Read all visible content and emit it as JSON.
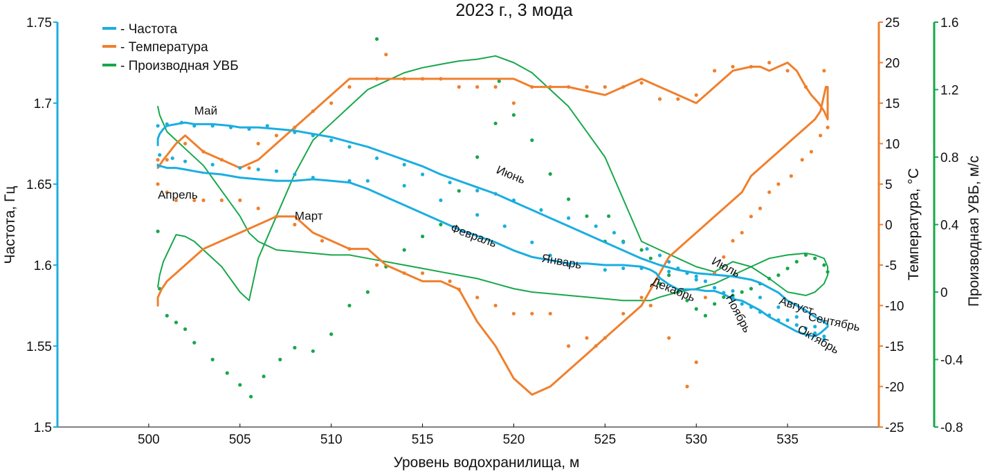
{
  "chart_data": {
    "type": "line",
    "title": "2023 г., 3 мода",
    "xlabel": "Уровень водохранилища, м",
    "xlim": [
      495,
      540
    ],
    "xticks": [
      500,
      505,
      510,
      515,
      520,
      525,
      530,
      535
    ],
    "axes": {
      "freq": {
        "label": "Частота, Гц",
        "lim": [
          1.5,
          1.75
        ],
        "ticks": [
          1.5,
          1.55,
          1.6,
          1.65,
          1.7,
          1.75
        ],
        "tick_labels": [
          "1.5",
          "1.55",
          "1.6",
          "1.65",
          "1.7",
          "1.75"
        ],
        "color": "#1aaee0"
      },
      "temp": {
        "label": "Температура, °С",
        "lim": [
          -25,
          25
        ],
        "ticks": [
          -25,
          -20,
          -15,
          -10,
          -5,
          0,
          5,
          10,
          15,
          20,
          25
        ],
        "tick_labels": [
          "-25",
          "-20",
          "-15",
          "-10",
          "-5",
          "0",
          "5",
          "10",
          "15",
          "20",
          "25"
        ],
        "color": "#f07f2c"
      },
      "deriv": {
        "label": "Производная УВБ, м/с",
        "lim": [
          -0.8,
          1.6
        ],
        "ticks": [
          -0.8,
          -0.4,
          0,
          0.4,
          0.8,
          1.2,
          1.6
        ],
        "tick_labels": [
          "-0.8",
          "-0.4",
          "0",
          "0.4",
          "0.8",
          "1.2",
          "1.6"
        ],
        "color": "#17a74a"
      }
    },
    "legend": {
      "placement": "top-left",
      "items": [
        "- Частота",
        "- Температура",
        "- Производная УВБ"
      ]
    },
    "series": [
      {
        "name": "Частота",
        "axis": "freq",
        "color": "#1aaee0",
        "line_x": [
          500.5,
          500.5,
          500.6,
          500.8,
          501,
          501.5,
          502,
          502.5,
          503.5,
          504.5,
          505,
          506,
          507,
          508,
          509,
          510,
          511,
          512,
          513,
          514,
          515,
          516,
          517,
          518,
          519,
          520,
          521,
          522,
          523,
          524,
          525,
          525,
          526,
          527,
          528,
          529,
          530,
          531,
          532,
          533,
          533.5,
          534,
          534.5,
          535,
          535.5,
          536,
          536.5,
          537,
          537.2,
          537.2,
          537.1,
          537,
          536.8,
          536.5,
          536,
          535.5,
          535,
          534.5,
          534,
          533.5,
          533,
          532.5,
          532,
          531.5,
          531,
          530.5,
          530,
          529.5,
          529,
          528.5,
          528,
          527.8,
          527.5,
          527,
          526,
          525,
          524,
          523,
          522,
          521,
          520,
          519,
          518,
          517,
          516,
          515,
          514,
          513,
          512,
          511,
          510,
          509,
          508,
          507,
          506,
          505,
          504,
          503,
          502.5,
          502,
          501.5,
          501,
          500.7,
          500.5,
          500.5
        ],
        "line_y": [
          1.674,
          1.678,
          1.681,
          1.684,
          1.686,
          1.687,
          1.688,
          1.687,
          1.687,
          1.686,
          1.685,
          1.685,
          1.684,
          1.683,
          1.681,
          1.679,
          1.676,
          1.673,
          1.669,
          1.665,
          1.661,
          1.656,
          1.652,
          1.648,
          1.644,
          1.639,
          1.634,
          1.629,
          1.624,
          1.619,
          1.614,
          1.614,
          1.609,
          1.604,
          1.6,
          1.597,
          1.595,
          1.594,
          1.593,
          1.591,
          1.589,
          1.586,
          1.583,
          1.578,
          1.575,
          1.572,
          1.568,
          1.565,
          1.563,
          1.562,
          1.561,
          1.56,
          1.558,
          1.556,
          1.557,
          1.559,
          1.562,
          1.565,
          1.568,
          1.572,
          1.575,
          1.578,
          1.579,
          1.582,
          1.584,
          1.584,
          1.585,
          1.585,
          1.585,
          1.588,
          1.592,
          1.595,
          1.597,
          1.599,
          1.6,
          1.6,
          1.601,
          1.601,
          1.603,
          1.605,
          1.609,
          1.614,
          1.618,
          1.622,
          1.627,
          1.632,
          1.637,
          1.642,
          1.647,
          1.651,
          1.652,
          1.653,
          1.652,
          1.652,
          1.653,
          1.654,
          1.656,
          1.657,
          1.658,
          1.659,
          1.66,
          1.66,
          1.661,
          1.661,
          1.662,
          1.66,
          1.661,
          1.664,
          1.668
        ],
        "scatter_x": [
          500.5,
          501,
          501.8,
          502.5,
          503.5,
          504.5,
          505.5,
          506.5,
          508,
          509,
          510,
          511,
          512.5,
          514,
          515,
          516.5,
          518,
          519,
          520,
          521.5,
          523,
          524.5,
          525.5,
          526,
          527.3,
          528,
          528.5,
          529,
          529.5,
          530,
          530.5,
          531,
          531.5,
          532,
          532.5,
          533,
          533.5,
          534,
          534.5,
          535,
          535.5,
          536,
          536.5,
          537,
          500.6,
          501.3,
          502,
          503.5,
          505,
          506,
          507,
          508,
          509,
          511,
          512,
          514,
          516,
          518,
          519.5,
          521,
          522,
          523,
          525,
          526,
          527,
          528.5,
          530,
          531,
          532,
          533.5,
          534.5,
          535.5,
          536.5,
          537
        ],
        "scatter_y": [
          1.686,
          1.687,
          1.688,
          1.686,
          1.686,
          1.685,
          1.684,
          1.686,
          1.682,
          1.68,
          1.677,
          1.673,
          1.666,
          1.662,
          1.656,
          1.651,
          1.646,
          1.644,
          1.64,
          1.634,
          1.629,
          1.624,
          1.62,
          1.614,
          1.61,
          1.606,
          1.602,
          1.598,
          1.595,
          1.593,
          1.59,
          1.586,
          1.583,
          1.58,
          1.576,
          1.574,
          1.571,
          1.569,
          1.566,
          1.566,
          1.563,
          1.561,
          1.558,
          1.556,
          1.668,
          1.666,
          1.664,
          1.662,
          1.66,
          1.659,
          1.658,
          1.656,
          1.654,
          1.652,
          1.652,
          1.649,
          1.64,
          1.631,
          1.624,
          1.614,
          1.606,
          1.6,
          1.597,
          1.598,
          1.598,
          1.596,
          1.591,
          1.586,
          1.584,
          1.58,
          1.574,
          1.568,
          1.562,
          1.554
        ]
      },
      {
        "name": "Температура",
        "axis": "temp",
        "color": "#f07f2c",
        "line_x": [
          500.5,
          500.8,
          501.5,
          502,
          502.5,
          503,
          504,
          505,
          506,
          507,
          508,
          509,
          510,
          511,
          512,
          513,
          514,
          515,
          516,
          517,
          518,
          519,
          520,
          521,
          522,
          523,
          524,
          525,
          525,
          526,
          527,
          528,
          529,
          530,
          531,
          532,
          533,
          533.5,
          534,
          534.5,
          535,
          535.5,
          536,
          536.3,
          536.7,
          537,
          537.2,
          537.2,
          537.1,
          537,
          536.8,
          536.5,
          536,
          535.5,
          535,
          534.5,
          534,
          533.5,
          533,
          532.5,
          532,
          531.5,
          531,
          530.5,
          530,
          529.5,
          529,
          528.5,
          528,
          527.5,
          527,
          526,
          525,
          524,
          523,
          522,
          521,
          520,
          519,
          518,
          517.5,
          517,
          516,
          515,
          514,
          513,
          512,
          511,
          510,
          509,
          508.5,
          508,
          507,
          506,
          505,
          504,
          503,
          502.5,
          502,
          501.5,
          501,
          500.7,
          500.5,
          500.5
        ],
        "line_y": [
          7,
          8,
          10,
          11,
          10,
          9,
          8,
          7,
          8,
          10,
          12,
          14,
          16,
          18,
          18,
          18,
          18,
          18,
          18,
          18,
          18,
          18,
          18,
          17,
          17,
          17,
          16.5,
          16,
          16,
          17,
          18,
          17,
          16,
          15,
          17,
          19,
          19.5,
          19.5,
          19,
          19.5,
          20,
          19,
          17,
          16,
          15,
          14,
          13,
          17,
          17,
          16,
          14,
          13,
          12,
          11,
          10,
          9,
          8,
          7,
          6,
          4,
          3,
          2,
          1,
          0,
          -1,
          -2,
          -3,
          -4,
          -6,
          -8,
          -10,
          -12,
          -14,
          -16,
          -18,
          -20,
          -21,
          -19,
          -15,
          -12,
          -10,
          -8,
          -7,
          -7,
          -6,
          -5,
          -3,
          -3,
          -2,
          -1,
          0,
          1,
          1,
          0,
          -1,
          -2,
          -3,
          -4,
          -5,
          -6,
          -7,
          -8,
          -9,
          -10,
          -11,
          -12,
          -12
        ],
        "scatter_x": [
          500.5,
          501,
          502,
          503,
          504,
          505.5,
          506,
          507,
          508,
          509,
          510,
          511,
          512.5,
          513,
          514,
          515,
          516,
          517,
          518,
          519,
          520,
          521,
          522,
          523,
          524,
          525,
          526,
          527,
          528,
          529,
          530,
          531,
          532,
          533,
          534,
          535,
          536,
          537,
          537.2,
          536.8,
          536.3,
          535.8,
          535.2,
          534.5,
          534,
          533.5,
          533,
          532.5,
          532,
          531.5,
          531,
          530.5,
          530,
          529.5,
          528.5,
          527.5,
          527,
          526,
          525,
          524.5,
          524,
          523,
          522,
          521,
          520,
          519,
          518,
          517,
          516.5,
          515,
          514,
          512.5,
          511,
          509.5,
          508,
          507,
          506,
          505,
          504,
          503,
          502.5,
          501.5,
          501,
          500.5
        ],
        "scatter_y": [
          8,
          8,
          10,
          9,
          8,
          7,
          10,
          11,
          12,
          14,
          15,
          17,
          18,
          21,
          18,
          18,
          18,
          17,
          17,
          17,
          15,
          17,
          17,
          17,
          17,
          17,
          17,
          17.5,
          15.5,
          15.5,
          16,
          19,
          19.5,
          19.5,
          20,
          19,
          17,
          19,
          12,
          11,
          9,
          8,
          6,
          5,
          4,
          2,
          1,
          -1,
          -2,
          -4,
          -6,
          -9,
          -17,
          -20,
          -14,
          -10,
          -9,
          -11,
          -14,
          -15,
          -14,
          -15,
          -11,
          -11,
          -11,
          -10,
          -9,
          -8,
          -7,
          -6,
          -6,
          -5,
          -3,
          -2,
          0,
          1,
          2,
          3,
          3,
          3,
          3,
          3,
          4,
          5
        ]
      },
      {
        "name": "Производная УВБ",
        "axis": "deriv",
        "color": "#17a74a",
        "line_x": [
          500.5,
          500.6,
          500.8,
          501.5,
          502,
          502.5,
          503,
          504,
          505,
          505.5,
          506,
          507,
          508,
          509,
          510,
          511,
          512,
          513,
          514,
          515,
          516,
          517,
          518,
          519,
          520,
          521,
          522,
          523,
          524,
          525,
          525,
          526,
          527,
          528,
          529,
          530,
          531,
          532,
          533,
          534,
          535,
          536,
          536.5,
          537,
          537.2,
          537.2,
          537,
          536.5,
          536,
          535,
          534,
          533,
          532,
          531,
          530,
          529,
          528,
          527.5,
          527,
          526,
          525,
          524,
          523,
          522,
          521,
          520,
          519,
          518,
          517,
          516,
          515,
          514,
          513,
          512,
          511,
          510,
          509,
          508,
          507,
          506,
          505.5,
          505,
          504,
          503,
          502,
          501.5,
          501,
          500.8,
          500.6,
          500.5
        ],
        "line_y": [
          0.03,
          0.1,
          0.18,
          0.34,
          0.33,
          0.3,
          0.25,
          0.15,
          0.0,
          -0.05,
          0.2,
          0.45,
          0.7,
          0.9,
          1.0,
          1.1,
          1.2,
          1.25,
          1.3,
          1.33,
          1.35,
          1.37,
          1.38,
          1.4,
          1.36,
          1.3,
          1.2,
          1.1,
          0.95,
          0.8,
          0.8,
          0.55,
          0.3,
          0.25,
          0.2,
          0.15,
          0.12,
          0.18,
          0.15,
          0.08,
          0.0,
          -0.02,
          0.0,
          0.05,
          0.1,
          0.15,
          0.2,
          0.22,
          0.23,
          0.22,
          0.2,
          0.15,
          0.1,
          0.05,
          0.02,
          0.0,
          -0.03,
          -0.05,
          -0.05,
          -0.05,
          -0.04,
          -0.03,
          -0.02,
          -0.01,
          0.0,
          0.02,
          0.05,
          0.08,
          0.1,
          0.12,
          0.14,
          0.16,
          0.18,
          0.2,
          0.22,
          0.22,
          0.23,
          0.24,
          0.25,
          0.3,
          0.35,
          0.45,
          0.6,
          0.75,
          0.85,
          0.9,
          0.95,
          1.0,
          1.05,
          1.1
        ],
        "scatter_x": [
          500.5,
          500.6,
          501,
          501.5,
          502,
          502.5,
          503.5,
          504.3,
          505,
          505.6,
          506.3,
          507.2,
          508,
          509,
          510,
          511,
          512,
          512.5,
          513,
          514,
          515,
          516,
          517,
          518,
          519,
          519.2,
          520,
          521,
          522,
          523,
          524,
          525,
          525.2,
          526,
          527,
          527.5,
          528,
          528.5,
          529,
          529.5,
          530,
          530.5,
          531,
          531.5,
          532,
          532.5,
          533,
          533.5,
          534,
          534.5,
          535,
          535.5,
          536,
          536.5,
          537,
          537.2
        ],
        "scatter_y": [
          0.36,
          0.02,
          -0.14,
          -0.18,
          -0.22,
          -0.3,
          -0.4,
          -0.48,
          -0.55,
          -0.62,
          -0.5,
          -0.4,
          -0.33,
          -0.35,
          -0.25,
          -0.08,
          0.0,
          1.5,
          0.15,
          0.25,
          0.33,
          0.4,
          0.6,
          0.8,
          1.0,
          1.25,
          1.05,
          0.9,
          0.7,
          0.55,
          0.45,
          0.3,
          0.45,
          0.3,
          0.25,
          0.2,
          0.05,
          0.1,
          0.0,
          -0.05,
          -0.1,
          -0.14,
          -0.07,
          -0.03,
          -0.02,
          0.0,
          0.02,
          0.05,
          0.08,
          0.1,
          0.14,
          0.18,
          0.22,
          0.2,
          0.16,
          0.12
        ]
      }
    ],
    "annotations": [
      {
        "text": "Май",
        "x": 502.5,
        "y": 1.693,
        "angle": 0
      },
      {
        "text": "Апрель",
        "x": 500.5,
        "y": 1.641,
        "angle": 0
      },
      {
        "text": "Март",
        "x": 508,
        "y": 1.628,
        "angle": 0
      },
      {
        "text": "Июнь",
        "x": 519,
        "y": 1.657,
        "angle": 22
      },
      {
        "text": "Февраль",
        "x": 516.5,
        "y": 1.621,
        "angle": 20
      },
      {
        "text": "Январь",
        "x": 521.5,
        "y": 1.602,
        "angle": 10
      },
      {
        "text": "Июль",
        "x": 530.8,
        "y": 1.601,
        "angle": 28
      },
      {
        "text": "Декабрь",
        "x": 527.5,
        "y": 1.588,
        "angle": 22
      },
      {
        "text": "Август",
        "x": 534.5,
        "y": 1.576,
        "angle": 18
      },
      {
        "text": "Сентябрь",
        "x": 536.1,
        "y": 1.566,
        "angle": 12
      },
      {
        "text": "Ноябрь",
        "x": 531.6,
        "y": 1.58,
        "angle": 62
      },
      {
        "text": "Октябрь",
        "x": 535.5,
        "y": 1.559,
        "angle": 30
      }
    ]
  }
}
